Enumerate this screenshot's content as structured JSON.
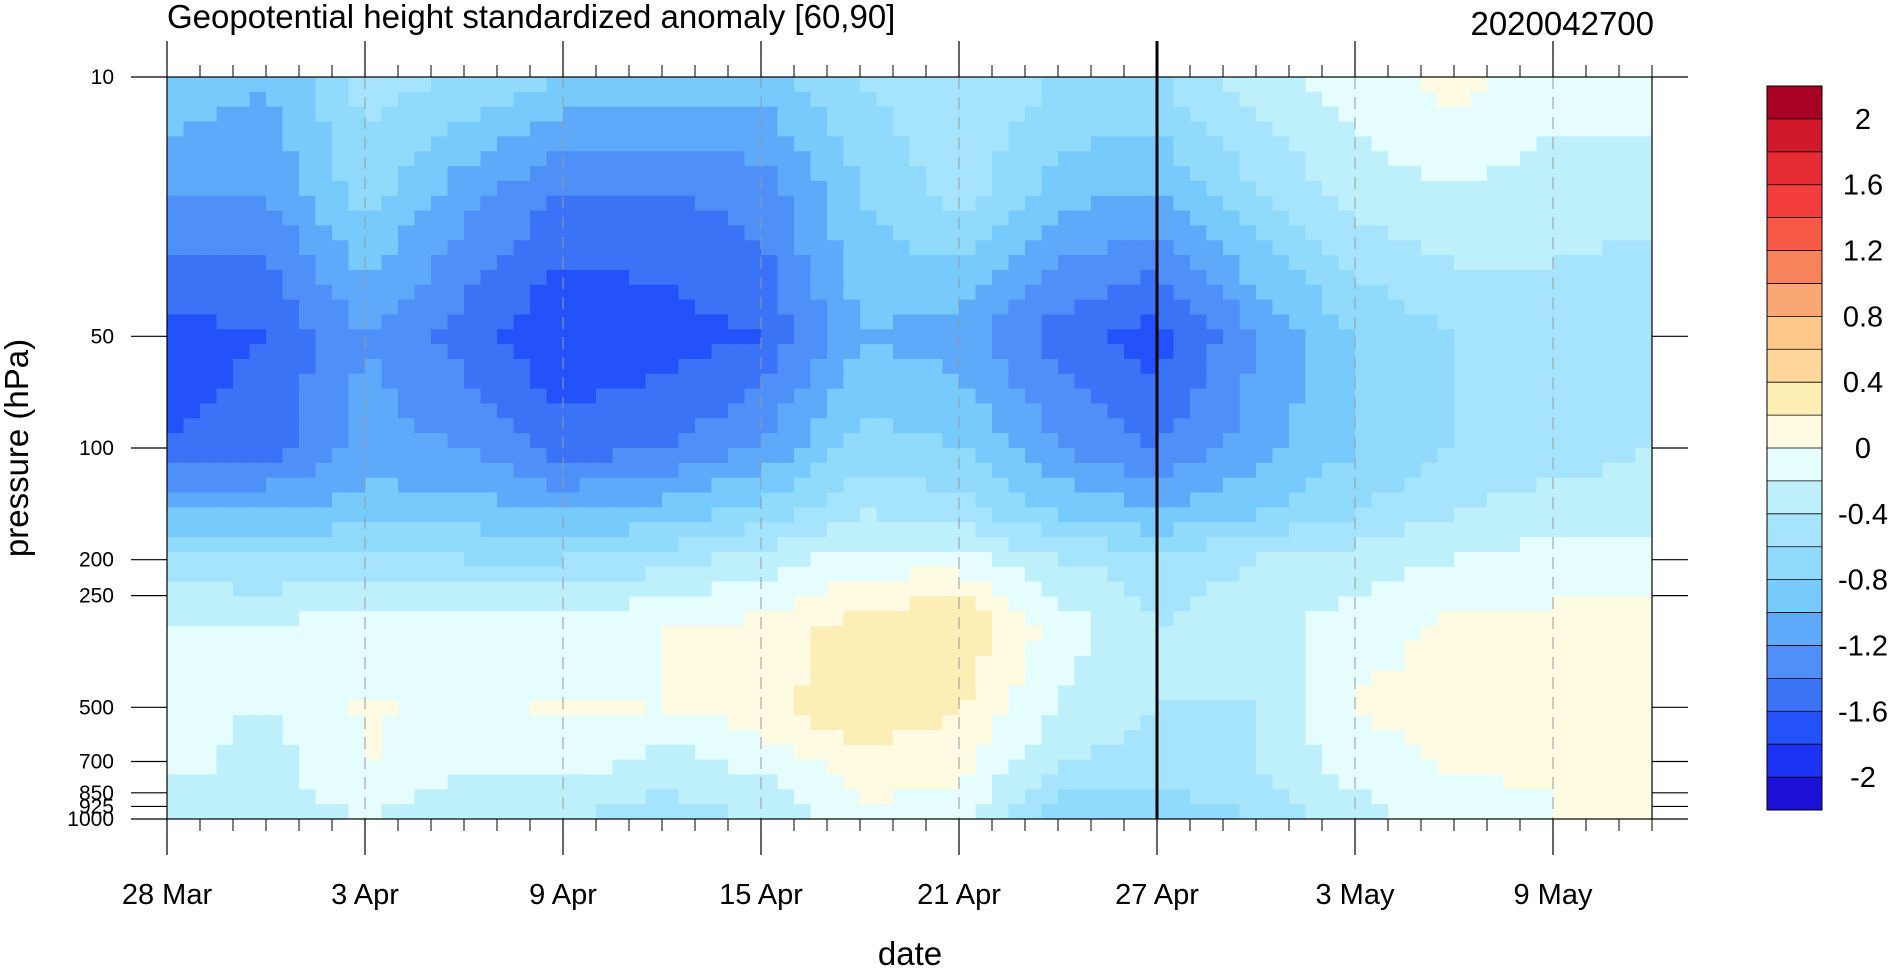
{
  "chart_data": {
    "type": "heatmap",
    "title": "Geopotential height standardized anomaly [60,90]",
    "date_label": "2020042700",
    "xlabel": "date",
    "ylabel": "pressure (hPa)",
    "x_tick_labels": [
      "28 Mar",
      "3 Apr",
      "9 Apr",
      "15 Apr",
      "21 Apr",
      "27 Apr",
      "3 May",
      "9 May"
    ],
    "x_tick_days": [
      0,
      6,
      12,
      18,
      24,
      30,
      36,
      42
    ],
    "x_range_days": [
      0,
      45
    ],
    "y_tick_labels": [
      "10",
      "50",
      "100",
      "200",
      "250",
      "500",
      "700",
      "850",
      "925",
      "1000"
    ],
    "y_tick_values": [
      10,
      50,
      100,
      200,
      250,
      500,
      700,
      850,
      925,
      1000
    ],
    "y_range": [
      10,
      1000
    ],
    "y_scale": "log",
    "y_inverted": true,
    "reference_line_label": "27 Apr",
    "reference_line_day": 30,
    "colorbar": {
      "levels": [
        -2.2,
        -2.0,
        -1.8,
        -1.6,
        -1.4,
        -1.2,
        -1.0,
        -0.8,
        -0.6,
        -0.4,
        -0.2,
        0.0,
        0.2,
        0.4,
        0.6,
        0.8,
        1.0,
        1.2,
        1.4,
        1.6,
        1.8,
        2.0,
        2.2
      ],
      "colors": [
        "#1c10d6",
        "#1c32f5",
        "#2452fa",
        "#3b73f7",
        "#4f90f8",
        "#5fa9fb",
        "#76cbfc",
        "#90dbfc",
        "#a5e4fc",
        "#bdf0fb",
        "#e6fdfd",
        "#fffbe3",
        "#fdeeb5",
        "#fdd79b",
        "#fbc88a",
        "#f9a873",
        "#f7835a",
        "#f65a46",
        "#f43e3e",
        "#e62d36",
        "#d01a2c",
        "#a90124"
      ],
      "tick_labels": [
        "2",
        "1.6",
        "1.2",
        "0.8",
        "0.4",
        "0",
        "-0.4",
        "-0.8",
        "-1.2",
        "-1.6",
        "-2"
      ],
      "tick_values": [
        2.0,
        1.6,
        1.2,
        0.8,
        0.4,
        0.0,
        -0.4,
        -0.8,
        -1.2,
        -1.6,
        -2.0
      ]
    },
    "grid_values": {
      "days": [
        0,
        3,
        6,
        9,
        12,
        15,
        18,
        21,
        24,
        27,
        30,
        33,
        36,
        39,
        42,
        45
      ],
      "levels": [
        10,
        20,
        50,
        100,
        150,
        200,
        300,
        500,
        700,
        850,
        1000
      ],
      "values": [
        [
          -0.8,
          -1.0,
          -0.5,
          -0.6,
          -0.8,
          -0.9,
          -0.9,
          -0.6,
          -0.4,
          -0.6,
          -0.6,
          -0.3,
          -0.1,
          0.1,
          -0.1,
          -0.1
        ],
        [
          -1.2,
          -1.2,
          -0.7,
          -1.1,
          -1.4,
          -1.4,
          -1.3,
          -0.8,
          -0.5,
          -0.9,
          -1.0,
          -0.6,
          -0.3,
          -0.2,
          -0.3,
          -0.3
        ],
        [
          -1.7,
          -1.6,
          -1.2,
          -1.5,
          -1.8,
          -1.7,
          -1.6,
          -1.0,
          -1.1,
          -1.5,
          -1.7,
          -1.2,
          -0.8,
          -0.6,
          -0.5,
          -0.6
        ],
        [
          -1.6,
          -1.5,
          -1.1,
          -1.2,
          -1.5,
          -1.4,
          -1.2,
          -0.7,
          -0.8,
          -1.2,
          -1.4,
          -1.1,
          -0.8,
          -0.6,
          -0.5,
          -0.4
        ],
        [
          -1.0,
          -1.0,
          -0.9,
          -0.9,
          -1.0,
          -0.9,
          -0.7,
          -0.4,
          -0.5,
          -0.8,
          -1.0,
          -0.8,
          -0.6,
          -0.4,
          -0.3,
          -0.3
        ],
        [
          -0.5,
          -0.6,
          -0.5,
          -0.6,
          -0.6,
          -0.5,
          -0.3,
          -0.1,
          -0.1,
          -0.4,
          -0.5,
          -0.4,
          -0.3,
          -0.2,
          -0.1,
          -0.1
        ],
        [
          -0.2,
          -0.2,
          -0.1,
          -0.1,
          -0.1,
          0.0,
          0.05,
          0.3,
          0.4,
          -0.1,
          -0.4,
          -0.3,
          -0.1,
          0.05,
          0.05,
          0.05
        ],
        [
          -0.15,
          -0.2,
          0.02,
          -0.05,
          0.02,
          0.0,
          0.1,
          0.4,
          0.2,
          -0.2,
          -0.4,
          -0.4,
          0.03,
          0.05,
          0.05,
          0.05
        ],
        [
          -0.1,
          -0.3,
          0.02,
          -0.1,
          -0.05,
          -0.3,
          -0.1,
          0.1,
          0.1,
          -0.4,
          -0.5,
          -0.4,
          -0.1,
          0.03,
          0.05,
          0.05
        ],
        [
          -0.25,
          -0.3,
          -0.1,
          -0.3,
          -0.3,
          -0.4,
          -0.3,
          0.03,
          0.0,
          -0.6,
          -0.6,
          -0.5,
          -0.2,
          -0.05,
          0.0,
          0.0
        ],
        [
          -0.3,
          -0.3,
          -0.2,
          -0.3,
          -0.4,
          -0.5,
          -0.4,
          -0.1,
          -0.2,
          -0.7,
          -0.8,
          -0.6,
          -0.3,
          -0.1,
          0.0,
          0.0
        ]
      ]
    }
  }
}
